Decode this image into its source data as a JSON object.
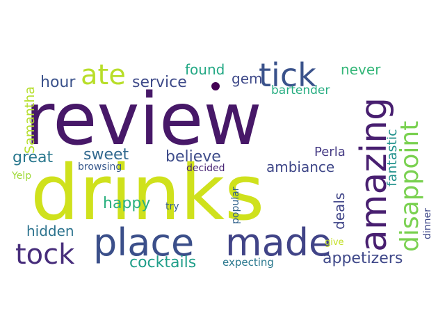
{
  "words": [
    {
      "text": "review",
      "color": "#471868"
    },
    {
      "text": "drinks",
      "color": "#cfe11c"
    },
    {
      "text": "place",
      "color": "#3b4f8a"
    },
    {
      "text": "made",
      "color": "#414487"
    },
    {
      "text": "amazing",
      "color": "#481f70"
    },
    {
      "text": "tick",
      "color": "#3a528b"
    },
    {
      "text": "ate",
      "color": "#b8de29"
    },
    {
      "text": "tock",
      "color": "#472d7b"
    },
    {
      "text": "disappoint",
      "color": "#7ad151"
    },
    {
      "text": "service",
      "color": "#3e4a89"
    },
    {
      "text": "hour",
      "color": "#3b528b"
    },
    {
      "text": "found",
      "color": "#22a884"
    },
    {
      "text": "never",
      "color": "#35b779"
    },
    {
      "text": "gem",
      "color": "#3e4989"
    },
    {
      "text": "bartender",
      "color": "#26ad81"
    },
    {
      "text": "Samantha",
      "color": "#b5de2b"
    },
    {
      "text": "great",
      "color": "#2a788e"
    },
    {
      "text": "sweet",
      "color": "#31688e"
    },
    {
      "text": "believe",
      "color": "#3e4c8a"
    },
    {
      "text": "Perla",
      "color": "#443983"
    },
    {
      "text": "fantastic",
      "color": "#21918c"
    },
    {
      "text": "ambiance",
      "color": "#3f4788"
    },
    {
      "text": "browsing",
      "color": "#38598c"
    },
    {
      "text": "decided",
      "color": "#482475"
    },
    {
      "text": "Yelp",
      "color": "#a0da39"
    },
    {
      "text": "happy",
      "color": "#2ab07f"
    },
    {
      "text": "try",
      "color": "#355f8d"
    },
    {
      "text": "popular",
      "color": "#33638d"
    },
    {
      "text": "deals",
      "color": "#404588"
    },
    {
      "text": "dinner",
      "color": "#3f4889"
    },
    {
      "text": "hidden",
      "color": "#2c738e"
    },
    {
      "text": "give",
      "color": "#c2df23"
    },
    {
      "text": "cocktails",
      "color": "#1f9e89"
    },
    {
      "text": "expecting",
      "color": "#2a788e"
    },
    {
      "text": "appetizers",
      "color": "#3f4889"
    },
    {
      "text": "dot",
      "color": "#440154"
    }
  ]
}
